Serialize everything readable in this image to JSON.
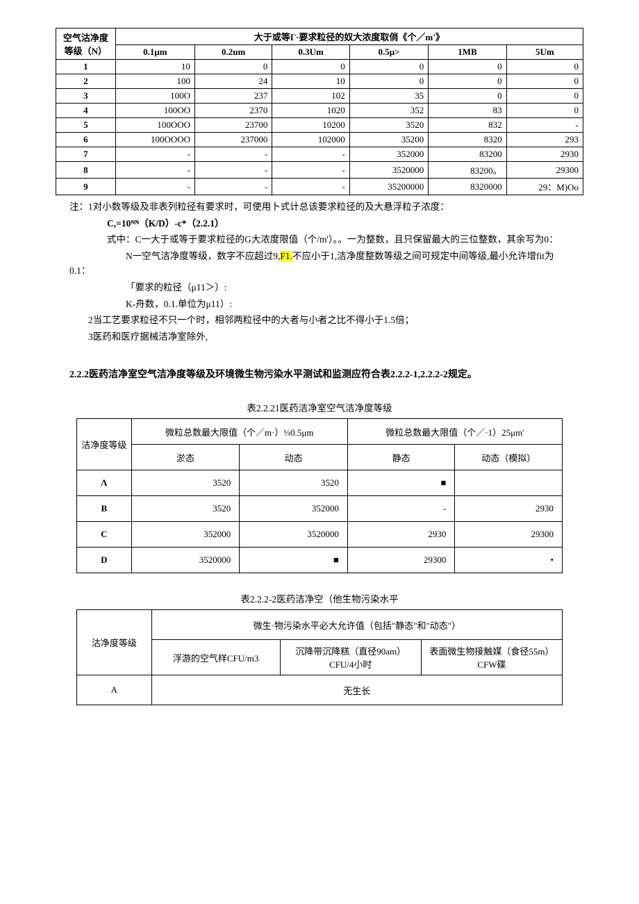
{
  "table1": {
    "header_left_l1": "空气沽净度",
    "header_left_l2": "等级（N）",
    "header_span": "大于或等Γ·要求粒径的奴大浓度取俏《个／m'》",
    "cols": [
      "0.1μm",
      "0.2um",
      "0.3Um",
      "0.5μ>",
      "1MB",
      "5Um"
    ],
    "rows": [
      [
        "1",
        "10",
        "0",
        "0",
        "0",
        "0",
        "0"
      ],
      [
        "2",
        "100",
        "24",
        "10",
        "0",
        "0",
        "0"
      ],
      [
        "3",
        "100O",
        "237",
        "102",
        "35",
        "0",
        "0"
      ],
      [
        "4",
        "100OO",
        "2370",
        "1020",
        "352",
        "83",
        "0"
      ],
      [
        "5",
        "100OOO",
        "23700",
        "10200",
        "3520",
        "832",
        "-"
      ],
      [
        "6",
        "100OOOO",
        "237000",
        "102000",
        "35200",
        "8320",
        "293"
      ],
      [
        "7",
        "-",
        "-",
        "-",
        "352000",
        "83200",
        "2930"
      ],
      [
        "8",
        "-",
        "-",
        "-",
        "3520000",
        "83200。",
        "29300"
      ],
      [
        "9",
        "-",
        "-",
        "-",
        "35200000",
        "8320000",
        "29：M)Oo"
      ]
    ]
  },
  "notes": {
    "n1": "注：1对小数等级及非表列粒径有要求时，可使用卜式计总该要求粒径的及大悬浮粒子浓度：",
    "formula": "C,=10ᴺᴺ（K/D）-c*（2.2.1）",
    "n2": "式中：C一大于或等于要求粒径的G大浓度限值（个/m'）。。一为整数，且只保留最大的三位整数，其余写为0：",
    "n3a": "N一空气洁净度等级，数字不应超过9,",
    "n3b": "F1.",
    "n3c": "不应小于1,洁净度整数等级之间可规定中间等级,最小允许增fit为0.1：",
    "n4": "「要求的粒径（μ11＞）:",
    "n5": "K-舟数，0.1.单位为μ11）:",
    "n6": "2当工艺要求粒径不只一个时，相邻两粒径中的大者与小者之比不得小于1.5倍；",
    "n7": "3医药和医疗据械洁净室除外,"
  },
  "section": "2.2.2医药洁净室空气洁净度等级及环境微生物污染水平测试和监测应符合表2.2.2-1,2.2.2-2规定。",
  "table2": {
    "caption": "表2.2.21医药洁净室空气洁净度等级",
    "h_left": "洁净度等级",
    "h_span1": "微粒总数最大限值（个／m·）⅓0.5μm",
    "h_span2": "微粒总数最大限值（个／·1）25μm'",
    "sub": [
      "淤态",
      "动态",
      "静态",
      "动态（模拟）"
    ],
    "rows": [
      [
        "Λ",
        "3520",
        "3520",
        "■",
        ""
      ],
      [
        "B",
        "3520",
        "352000",
        "-",
        "2930"
      ],
      [
        "C",
        "352000",
        "3520000",
        "2930",
        "29300"
      ],
      [
        "D",
        "3520000",
        "■",
        "29300",
        "•"
      ]
    ]
  },
  "table3": {
    "caption": "表2.2.2-2医药洁净空（他生物污染水平",
    "h_left": "沽净度等级",
    "h_span": "微生·物污染水平必大允许值（包括\"静态\"和\"动态\"）",
    "cols": [
      "浮游的空气样CFU/m3",
      "沉降带沉降糕（直径90am）CFU/4小时",
      "表面微生物接触媒（食径55m）CFW碟"
    ],
    "row_a_label": "A",
    "row_a_value": "无生长"
  }
}
